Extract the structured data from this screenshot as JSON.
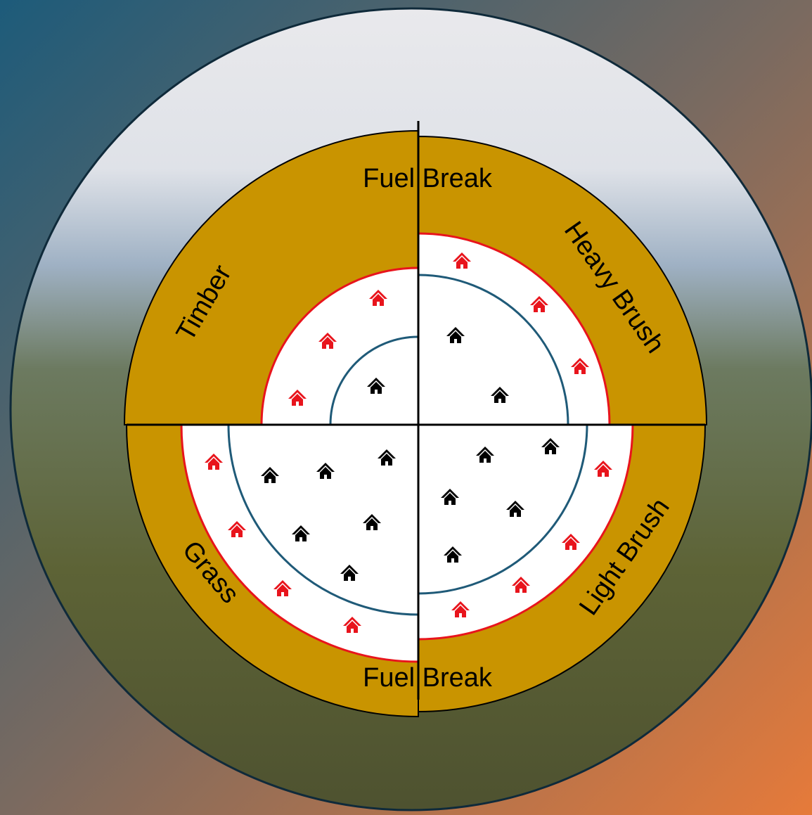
{
  "labels": {
    "top": "Fuel Break",
    "top_left": "Timber",
    "top_right": "Heavy Brush",
    "bottom_left": "Grass",
    "bottom_right": "Light Brush",
    "bottom": "Fuel Break"
  }
}
